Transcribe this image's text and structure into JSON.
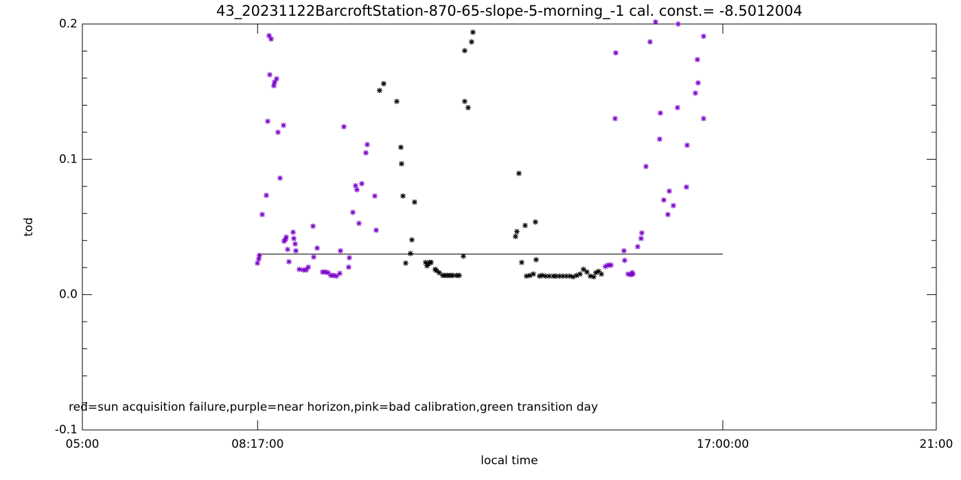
{
  "chart_data": {
    "type": "scatter",
    "title": "43_20231122BarcroftStation-870-65-slope-5-morning_-1 cal. const.= -8.5012004",
    "x_label": "local time",
    "y_label": "tod",
    "annotation": "red=sun acquisition failure,purple=near horizon,pink=bad calibration,green transition day",
    "xlim": [
      5,
      21
    ],
    "xticks": [
      {
        "value": 5,
        "label": "05:00"
      },
      {
        "value": 8.2833,
        "label": "08:17:00"
      },
      {
        "value": 17,
        "label": "17:00:00"
      },
      {
        "value": 21,
        "label": "21:00"
      }
    ],
    "ylim": [
      -0.1,
      0.2
    ],
    "yticks": [
      -0.1,
      {
        "value": 0,
        "label": "0.0"
      },
      0.1,
      0.2
    ],
    "y_minor_divisions": 5,
    "reference_line": {
      "x": [
        8.2833,
        17
      ],
      "y": 0.03
    },
    "series": [
      {
        "color": "#000000",
        "x": [
          10.569,
          10.646,
          10.891,
          10.968,
          10.981,
          11.007,
          11.058,
          11.148,
          11.174,
          11.225,
          11.431,
          11.457,
          11.482,
          11.508,
          11.534,
          11.611,
          11.637,
          11.688,
          11.753,
          11.791,
          11.843,
          11.894,
          11.945,
          12.01,
          12.061,
          12.139,
          12.164,
          12.164,
          12.228,
          12.293,
          12.318,
          13.116,
          13.142,
          13.18,
          13.232,
          13.296,
          13.322,
          13.386,
          13.45,
          13.489,
          13.502,
          13.566,
          13.618,
          13.682,
          13.746,
          13.823,
          13.875,
          13.939,
          14.003,
          14.068,
          14.132,
          14.196,
          14.261,
          14.325,
          14.389,
          14.454,
          14.518,
          14.582,
          14.621,
          14.672,
          14.724
        ],
        "values": [
          0.1509,
          0.1559,
          0.1428,
          0.1089,
          0.0967,
          0.0729,
          0.0233,
          0.0304,
          0.0405,
          0.0684,
          0.0238,
          0.0213,
          0.0228,
          0.0238,
          0.0238,
          0.0187,
          0.0177,
          0.0162,
          0.0142,
          0.0142,
          0.0142,
          0.0142,
          0.0142,
          0.0142,
          0.0142,
          0.0284,
          0.1803,
          0.1428,
          0.1382,
          0.1868,
          0.1939,
          0.043,
          0.0466,
          0.0896,
          0.0238,
          0.0511,
          0.0137,
          0.0142,
          0.0152,
          0.0537,
          0.0258,
          0.0137,
          0.0142,
          0.0137,
          0.0137,
          0.0137,
          0.0137,
          0.0137,
          0.0137,
          0.0137,
          0.0137,
          0.0132,
          0.0142,
          0.0152,
          0.0187,
          0.0167,
          0.0137,
          0.0132,
          0.0162,
          0.0172,
          0.0152
        ]
      },
      {
        "color": "#7a00c8",
        "x": [
          8.28,
          8.305,
          8.318,
          8.37,
          8.447,
          8.473,
          8.498,
          8.511,
          8.537,
          8.588,
          8.601,
          8.64,
          8.666,
          8.704,
          8.769,
          8.781,
          8.807,
          8.82,
          8.846,
          8.871,
          8.949,
          8.962,
          8.987,
          9.0,
          9.064,
          9.142,
          9.193,
          9.232,
          9.322,
          9.334,
          9.399,
          9.502,
          9.553,
          9.605,
          9.656,
          9.707,
          9.759,
          9.823,
          9.836,
          9.9,
          9.99,
          10.003,
          10.068,
          10.119,
          10.145,
          10.183,
          10.235,
          10.312,
          10.338,
          10.479,
          10.505,
          14.801,
          14.852,
          14.904,
          14.981,
          14.994,
          15.148,
          15.161,
          15.225,
          15.277,
          15.302,
          15.315,
          15.405,
          15.469,
          15.482,
          15.56,
          15.637,
          15.74,
          15.817,
          15.83,
          15.894,
          15.971,
          15.997,
          16.074,
          16.151,
          16.164,
          16.318,
          16.331,
          16.486,
          16.524,
          16.537,
          16.64,
          16.64
        ],
        "values": [
          0.0233,
          0.0263,
          0.0289,
          0.0592,
          0.0734,
          0.1281,
          0.1914,
          0.1625,
          0.1889,
          0.1544,
          0.157,
          0.1595,
          0.12,
          0.0861,
          0.1251,
          0.0395,
          0.041,
          0.0425,
          0.0334,
          0.0243,
          0.0461,
          0.0415,
          0.0375,
          0.0324,
          0.0187,
          0.0182,
          0.0182,
          0.0203,
          0.0506,
          0.0278,
          0.0344,
          0.0167,
          0.0167,
          0.0162,
          0.0142,
          0.0142,
          0.0137,
          0.0157,
          0.0324,
          0.1241,
          0.0203,
          0.0273,
          0.0608,
          0.0805,
          0.0775,
          0.0527,
          0.082,
          0.1048,
          0.1109,
          0.0729,
          0.0476,
          0.0208,
          0.0218,
          0.0218,
          0.1301,
          0.1787,
          0.0324,
          0.0253,
          0.0152,
          0.0147,
          0.0162,
          0.0152,
          0.0354,
          0.0415,
          0.0456,
          0.0947,
          0.1868,
          0.2015,
          0.1149,
          0.1342,
          0.0699,
          0.0592,
          0.0765,
          0.0658,
          0.1382,
          0.2,
          0.0795,
          0.1104,
          0.1489,
          0.1737,
          0.1565,
          0.1301,
          0.1909
        ]
      }
    ]
  }
}
